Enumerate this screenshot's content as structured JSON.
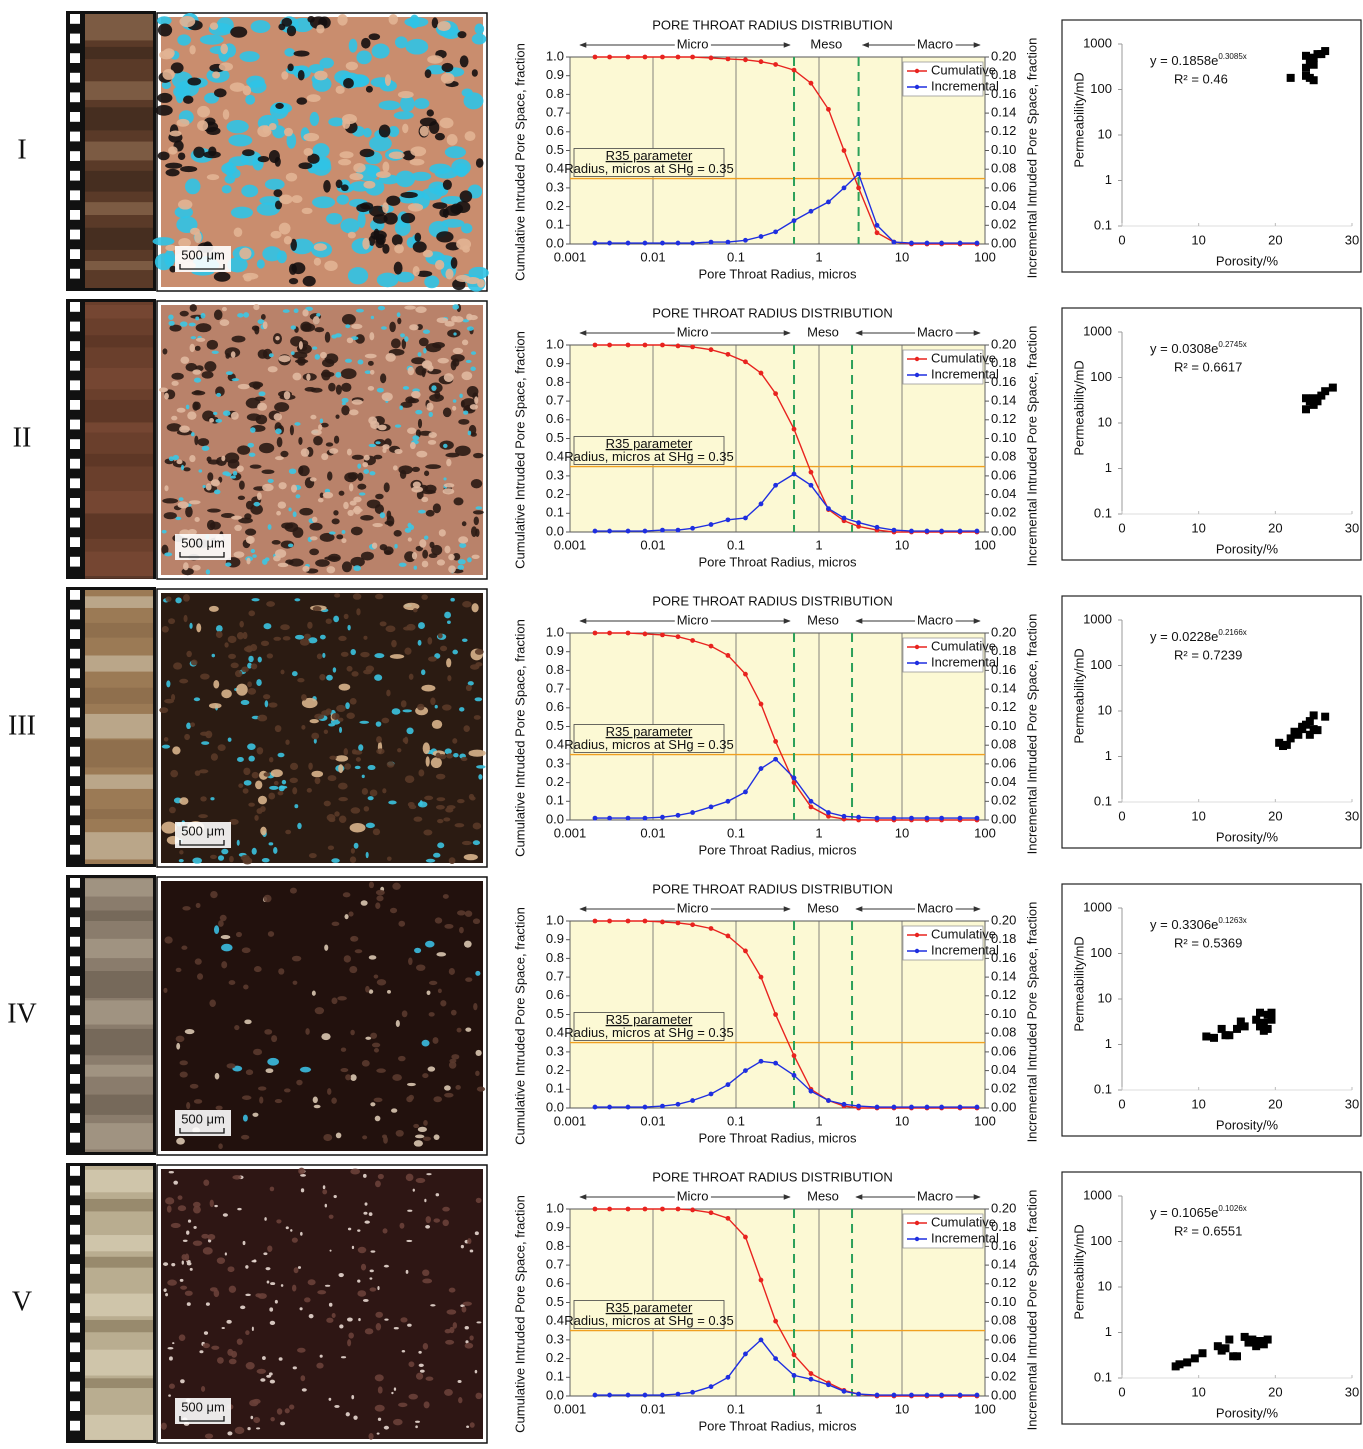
{
  "rows": [
    {
      "label": "I",
      "scale_bar": "500 μm"
    },
    {
      "label": "II",
      "scale_bar": "500 μm"
    },
    {
      "label": "III",
      "scale_bar": "500 μm"
    },
    {
      "label": "IV",
      "scale_bar": "500 μm"
    },
    {
      "label": "V",
      "scale_bar": "500 μm"
    }
  ],
  "chart_data": [
    {
      "type": "line",
      "title": "PORE THROAT RADIUS DISTRIBUTION",
      "x_label": "Pore Throat Radius, micros",
      "y_label": "Cumulative Intruded Pore Space, fraction",
      "y2_label": "Incremental Intruded Pore Space, fraction",
      "annotations": {
        "micro": "Micro",
        "meso": "Meso",
        "macro": "Macro",
        "r35_title": "R35 parameter",
        "r35_text": "Radius, micros at SHg = 0.35"
      },
      "r35": 0.35,
      "meso_bounds": [
        0.5,
        3
      ],
      "log_x": true,
      "grid": true,
      "xlim": [
        0.001,
        100
      ],
      "xticks": [
        0.001,
        0.01,
        0.1,
        1,
        10,
        100
      ],
      "ylim": [
        0,
        1
      ],
      "yticks": [
        {
          "value": 0,
          "label": "0.0"
        },
        0.1,
        0.2,
        0.3,
        0.4,
        0.5,
        0.6,
        0.7,
        0.8,
        0.9,
        {
          "value": 1,
          "label": "1.0"
        }
      ],
      "y2lim": [
        0,
        0.2
      ],
      "y2ticks": [
        {
          "value": 0,
          "label": "0.00"
        },
        0.02,
        0.04,
        0.06,
        0.08,
        {
          "value": 0.1,
          "label": "0.10"
        },
        0.12,
        0.14,
        0.16,
        0.18,
        {
          "value": 0.2,
          "label": "0.20"
        }
      ],
      "x": [
        0.002,
        0.003,
        0.005,
        0.008,
        0.013,
        0.02,
        0.03,
        0.05,
        0.08,
        0.13,
        0.2,
        0.3,
        0.5,
        0.8,
        1.3,
        2,
        3,
        5,
        8,
        13,
        20,
        30,
        50,
        80
      ],
      "series": [
        {
          "name": "Cumulative",
          "color": "#e8231f",
          "values": [
            1,
            1,
            1,
            1,
            1,
            1,
            1,
            0.995,
            0.99,
            0.985,
            0.975,
            0.96,
            0.93,
            0.86,
            0.72,
            0.5,
            0.3,
            0.06,
            0.01,
            0,
            0,
            0,
            0,
            0
          ]
        },
        {
          "name": "Incremental",
          "color": "#1f2fe0",
          "axis": "y2",
          "values": [
            0.001,
            0.001,
            0.001,
            0.001,
            0.001,
            0.001,
            0.001,
            0.002,
            0.002,
            0.004,
            0.008,
            0.013,
            0.025,
            0.035,
            0.045,
            0.06,
            0.075,
            0.02,
            0.002,
            0.001,
            0.001,
            0.001,
            0.001,
            0.001
          ]
        }
      ]
    },
    {
      "type": "scatter",
      "x_label": "Porosity/%",
      "y_label": "Permeability/mD",
      "equation": "y = 0.1858e",
      "exponent": "0.3085x",
      "r2": "R² = 0.46",
      "log_y": true,
      "xlim": [
        0,
        30
      ],
      "xticks": [
        0,
        10,
        20,
        30
      ],
      "ylim": [
        0.1,
        1000
      ],
      "yticks": [
        0.1,
        1,
        10,
        100,
        1000
      ],
      "x": [
        22,
        24,
        24.5,
        25,
        24,
        24.5,
        25,
        25.5,
        26,
        26.5,
        24,
        25
      ],
      "values": [
        180,
        200,
        180,
        160,
        300,
        400,
        500,
        600,
        600,
        700,
        550,
        350
      ]
    },
    {
      "type": "line",
      "title": "PORE THROAT RADIUS DISTRIBUTION",
      "x_label": "Pore Throat Radius, micros",
      "y_label": "Cumulative Intruded Pore Space, fraction",
      "y2_label": "Incremental Intruded Pore Space, fraction",
      "annotations": {
        "micro": "Micro",
        "meso": "Meso",
        "macro": "Macro",
        "r35_title": "R35 parameter",
        "r35_text": "Radius, micros at SHg = 0.35"
      },
      "r35": 0.35,
      "meso_bounds": [
        0.5,
        2.5
      ],
      "log_x": true,
      "grid": true,
      "xlim": [
        0.001,
        100
      ],
      "xticks": [
        0.001,
        0.01,
        0.1,
        1,
        10,
        100
      ],
      "ylim": [
        0,
        1
      ],
      "yticks": [
        {
          "value": 0,
          "label": "0.0"
        },
        0.1,
        0.2,
        0.3,
        0.4,
        0.5,
        0.6,
        0.7,
        0.8,
        0.9,
        {
          "value": 1,
          "label": "1.0"
        }
      ],
      "y2lim": [
        0,
        0.2
      ],
      "y2ticks": [
        {
          "value": 0,
          "label": "0.00"
        },
        0.02,
        0.04,
        0.06,
        0.08,
        {
          "value": 0.1,
          "label": "0.10"
        },
        0.12,
        0.14,
        0.16,
        0.18,
        {
          "value": 0.2,
          "label": "0.20"
        }
      ],
      "x": [
        0.002,
        0.003,
        0.005,
        0.008,
        0.013,
        0.02,
        0.03,
        0.05,
        0.08,
        0.13,
        0.2,
        0.3,
        0.5,
        0.8,
        1.3,
        2,
        3,
        5,
        8,
        13,
        20,
        30,
        50,
        80
      ],
      "series": [
        {
          "name": "Cumulative",
          "color": "#e8231f",
          "values": [
            1,
            1,
            1,
            1,
            1,
            0.995,
            0.99,
            0.975,
            0.95,
            0.91,
            0.85,
            0.74,
            0.55,
            0.32,
            0.12,
            0.06,
            0.03,
            0.01,
            0,
            0,
            0,
            0,
            0,
            0
          ]
        },
        {
          "name": "Incremental",
          "color": "#1f2fe0",
          "axis": "y2",
          "values": [
            0.001,
            0.001,
            0.001,
            0.001,
            0.002,
            0.002,
            0.004,
            0.008,
            0.013,
            0.015,
            0.03,
            0.05,
            0.062,
            0.05,
            0.025,
            0.015,
            0.01,
            0.005,
            0.002,
            0.001,
            0.001,
            0.001,
            0.001,
            0.001
          ]
        }
      ]
    },
    {
      "type": "scatter",
      "x_label": "Porosity/%",
      "y_label": "Permeability/mD",
      "equation": "y = 0.0308e",
      "exponent": "0.2745x",
      "r2": "R² = 0.6617",
      "log_y": true,
      "xlim": [
        0,
        30
      ],
      "xticks": [
        0,
        10,
        20,
        30
      ],
      "ylim": [
        0.1,
        1000
      ],
      "yticks": [
        0.1,
        1,
        10,
        100,
        1000
      ],
      "x": [
        24,
        24.5,
        25,
        25,
        25.5,
        26,
        26.5,
        27.5,
        24
      ],
      "values": [
        20,
        30,
        25,
        35,
        30,
        40,
        50,
        60,
        35
      ]
    },
    {
      "type": "line",
      "title": "PORE THROAT RADIUS DISTRIBUTION",
      "x_label": "Pore Throat Radius, micros",
      "y_label": "Cumulative Intruded Pore Space, fraction",
      "y2_label": "Incremental Intruded Pore Space, fraction",
      "annotations": {
        "micro": "Micro",
        "meso": "Meso",
        "macro": "Macro",
        "r35_title": "R35 parameter",
        "r35_text": "Radius, micros at SHg = 0.35"
      },
      "r35": 0.35,
      "meso_bounds": [
        0.5,
        2.5
      ],
      "log_x": true,
      "grid": true,
      "xlim": [
        0.001,
        100
      ],
      "xticks": [
        0.001,
        0.01,
        0.1,
        1,
        10,
        100
      ],
      "ylim": [
        0,
        1
      ],
      "yticks": [
        {
          "value": 0,
          "label": "0.0"
        },
        0.1,
        0.2,
        0.3,
        0.4,
        0.5,
        0.6,
        0.7,
        0.8,
        0.9,
        {
          "value": 1,
          "label": "1.0"
        }
      ],
      "y2lim": [
        0,
        0.2
      ],
      "y2ticks": [
        {
          "value": 0,
          "label": "0.00"
        },
        0.02,
        0.04,
        0.06,
        0.08,
        {
          "value": 0.1,
          "label": "0.10"
        },
        0.12,
        0.14,
        0.16,
        0.18,
        {
          "value": 0.2,
          "label": "0.20"
        }
      ],
      "x": [
        0.002,
        0.003,
        0.005,
        0.008,
        0.013,
        0.02,
        0.03,
        0.05,
        0.08,
        0.13,
        0.2,
        0.3,
        0.5,
        0.8,
        1.3,
        2,
        3,
        5,
        8,
        13,
        20,
        30,
        50,
        80
      ],
      "series": [
        {
          "name": "Cumulative",
          "color": "#e8231f",
          "values": [
            1,
            1,
            1,
            0.995,
            0.99,
            0.98,
            0.96,
            0.93,
            0.88,
            0.78,
            0.62,
            0.42,
            0.2,
            0.07,
            0.02,
            0.005,
            0,
            0,
            0,
            0,
            0,
            0,
            0,
            0
          ]
        },
        {
          "name": "Incremental",
          "color": "#1f2fe0",
          "axis": "y2",
          "values": [
            0.002,
            0.002,
            0.002,
            0.002,
            0.003,
            0.005,
            0.008,
            0.014,
            0.02,
            0.03,
            0.055,
            0.065,
            0.045,
            0.02,
            0.008,
            0.004,
            0.003,
            0.002,
            0.002,
            0.002,
            0.002,
            0.002,
            0.002,
            0.002
          ]
        }
      ]
    },
    {
      "type": "scatter",
      "x_label": "Porosity/%",
      "y_label": "Permeability/mD",
      "equation": "y = 0.0228e",
      "exponent": "0.2166x",
      "r2": "R² = 0.7239",
      "log_y": true,
      "xlim": [
        0,
        30
      ],
      "xticks": [
        0,
        10,
        20,
        30
      ],
      "ylim": [
        0.1,
        1000
      ],
      "yticks": [
        0.1,
        1,
        10,
        100,
        1000
      ],
      "x": [
        20.5,
        21,
        21.5,
        22,
        22.5,
        23,
        23.5,
        24,
        24.5,
        25,
        24.5,
        25,
        25.5,
        26.5,
        23.5
      ],
      "values": [
        2,
        1.7,
        1.8,
        2.5,
        3.5,
        3,
        4,
        5,
        6,
        8,
        3,
        4,
        3.8,
        7.5,
        4.5
      ]
    },
    {
      "type": "line",
      "title": "PORE THROAT RADIUS DISTRIBUTION",
      "x_label": "Pore Throat Radius, micros",
      "y_label": "Cumulative Intruded Pore Space, fraction",
      "y2_label": "Incremental Intruded Pore Space, fraction",
      "annotations": {
        "micro": "Micro",
        "meso": "Meso",
        "macro": "Macro",
        "r35_title": "R35 parameter",
        "r35_text": "Radius, micros at SHg = 0.35"
      },
      "r35": 0.35,
      "meso_bounds": [
        0.5,
        2.5
      ],
      "log_x": true,
      "grid": true,
      "xlim": [
        0.001,
        100
      ],
      "xticks": [
        0.001,
        0.01,
        0.1,
        1,
        10,
        100
      ],
      "ylim": [
        0,
        1
      ],
      "yticks": [
        {
          "value": 0,
          "label": "0.0"
        },
        0.1,
        0.2,
        0.3,
        0.4,
        0.5,
        0.6,
        0.7,
        0.8,
        0.9,
        {
          "value": 1,
          "label": "1.0"
        }
      ],
      "y2lim": [
        0,
        0.2
      ],
      "y2ticks": [
        {
          "value": 0,
          "label": "0.00"
        },
        0.02,
        0.04,
        0.06,
        0.08,
        {
          "value": 0.1,
          "label": "0.10"
        },
        0.12,
        0.14,
        0.16,
        0.18,
        {
          "value": 0.2,
          "label": "0.20"
        }
      ],
      "x": [
        0.002,
        0.003,
        0.005,
        0.008,
        0.013,
        0.02,
        0.03,
        0.05,
        0.08,
        0.13,
        0.2,
        0.3,
        0.5,
        0.8,
        1.3,
        2,
        3,
        5,
        8,
        13,
        20,
        30,
        50,
        80
      ],
      "series": [
        {
          "name": "Cumulative",
          "color": "#e8231f",
          "values": [
            1,
            1,
            1,
            1,
            0.995,
            0.99,
            0.98,
            0.96,
            0.92,
            0.84,
            0.7,
            0.5,
            0.28,
            0.1,
            0.04,
            0.01,
            0,
            0,
            0,
            0,
            0,
            0,
            0,
            0
          ]
        },
        {
          "name": "Incremental",
          "color": "#1f2fe0",
          "axis": "y2",
          "values": [
            0.001,
            0.001,
            0.001,
            0.001,
            0.002,
            0.004,
            0.008,
            0.015,
            0.025,
            0.04,
            0.05,
            0.048,
            0.035,
            0.018,
            0.008,
            0.004,
            0.002,
            0.001,
            0.001,
            0.001,
            0.001,
            0.001,
            0.001,
            0.001
          ]
        }
      ]
    },
    {
      "type": "scatter",
      "x_label": "Porosity/%",
      "y_label": "Permeability/mD",
      "equation": "y = 0.3306e",
      "exponent": "0.1263x",
      "r2": "R² = 0.5369",
      "log_y": true,
      "xlim": [
        0,
        30
      ],
      "xticks": [
        0,
        10,
        20,
        30
      ],
      "ylim": [
        0.1,
        1000
      ],
      "yticks": [
        0.1,
        1,
        10,
        100,
        1000
      ],
      "x": [
        11,
        12,
        13,
        13.5,
        14,
        15,
        15.5,
        16,
        17.5,
        18,
        18.5,
        18.5,
        19,
        19,
        19.5,
        19.5,
        18
      ],
      "values": [
        1.5,
        1.4,
        2.2,
        1.6,
        1.6,
        2.2,
        3.2,
        2.5,
        3.5,
        5,
        2,
        3,
        2.2,
        4.5,
        5,
        3.5,
        2.5
      ]
    },
    {
      "type": "line",
      "title": "PORE THROAT RADIUS DISTRIBUTION",
      "x_label": "Pore Throat Radius, micros",
      "y_label": "Cumulative Intruded Pore Space, fraction",
      "y2_label": "Incremental Intruded Pore Space, fraction",
      "annotations": {
        "micro": "Micro",
        "meso": "Meso",
        "macro": "Macro",
        "r35_title": "R35 parameter",
        "r35_text": "Radius, micros at SHg = 0.35"
      },
      "r35": 0.35,
      "meso_bounds": [
        0.5,
        2.5
      ],
      "log_x": true,
      "grid": true,
      "xlim": [
        0.001,
        100
      ],
      "xticks": [
        0.001,
        0.01,
        0.1,
        1,
        10,
        100
      ],
      "ylim": [
        0,
        1
      ],
      "yticks": [
        {
          "value": 0,
          "label": "0.0"
        },
        0.1,
        0.2,
        0.3,
        0.4,
        0.5,
        0.6,
        0.7,
        0.8,
        0.9,
        {
          "value": 1,
          "label": "1.0"
        }
      ],
      "y2lim": [
        0,
        0.2
      ],
      "y2ticks": [
        {
          "value": 0,
          "label": "0.00"
        },
        0.02,
        0.04,
        0.06,
        0.08,
        {
          "value": 0.1,
          "label": "0.10"
        },
        0.12,
        0.14,
        0.16,
        0.18,
        {
          "value": 0.2,
          "label": "0.20"
        }
      ],
      "x": [
        0.002,
        0.003,
        0.005,
        0.008,
        0.013,
        0.02,
        0.03,
        0.05,
        0.08,
        0.13,
        0.2,
        0.3,
        0.5,
        0.8,
        1.3,
        2,
        3,
        5,
        8,
        13,
        20,
        30,
        50,
        80
      ],
      "series": [
        {
          "name": "Cumulative",
          "color": "#e8231f",
          "values": [
            1,
            1,
            1,
            1,
            1,
            1,
            0.995,
            0.98,
            0.95,
            0.85,
            0.62,
            0.4,
            0.22,
            0.12,
            0.07,
            0.03,
            0.01,
            0,
            0,
            0,
            0,
            0,
            0,
            0
          ]
        },
        {
          "name": "Incremental",
          "color": "#1f2fe0",
          "axis": "y2",
          "values": [
            0.001,
            0.001,
            0.001,
            0.001,
            0.001,
            0.002,
            0.004,
            0.01,
            0.02,
            0.045,
            0.06,
            0.04,
            0.022,
            0.018,
            0.012,
            0.005,
            0.002,
            0.001,
            0.001,
            0.001,
            0.001,
            0.001,
            0.001,
            0.001
          ]
        }
      ]
    },
    {
      "type": "scatter",
      "x_label": "Porosity/%",
      "y_label": "Permeability/mD",
      "equation": "y = 0.1065e",
      "exponent": "0.1026x",
      "r2": "R² = 0.6551",
      "log_y": true,
      "xlim": [
        0,
        30
      ],
      "xticks": [
        0,
        10,
        20,
        30
      ],
      "ylim": [
        0.1,
        1000
      ],
      "yticks": [
        0.1,
        1,
        10,
        100,
        1000
      ],
      "x": [
        7,
        7.5,
        8.5,
        9.5,
        10.5,
        12.5,
        13,
        13.5,
        14,
        14.5,
        15,
        16,
        16.5,
        17,
        17.5,
        18,
        18.5,
        19
      ],
      "values": [
        0.18,
        0.2,
        0.22,
        0.27,
        0.35,
        0.5,
        0.4,
        0.45,
        0.7,
        0.3,
        0.3,
        0.8,
        0.6,
        0.7,
        0.5,
        0.65,
        0.55,
        0.7
      ]
    }
  ]
}
